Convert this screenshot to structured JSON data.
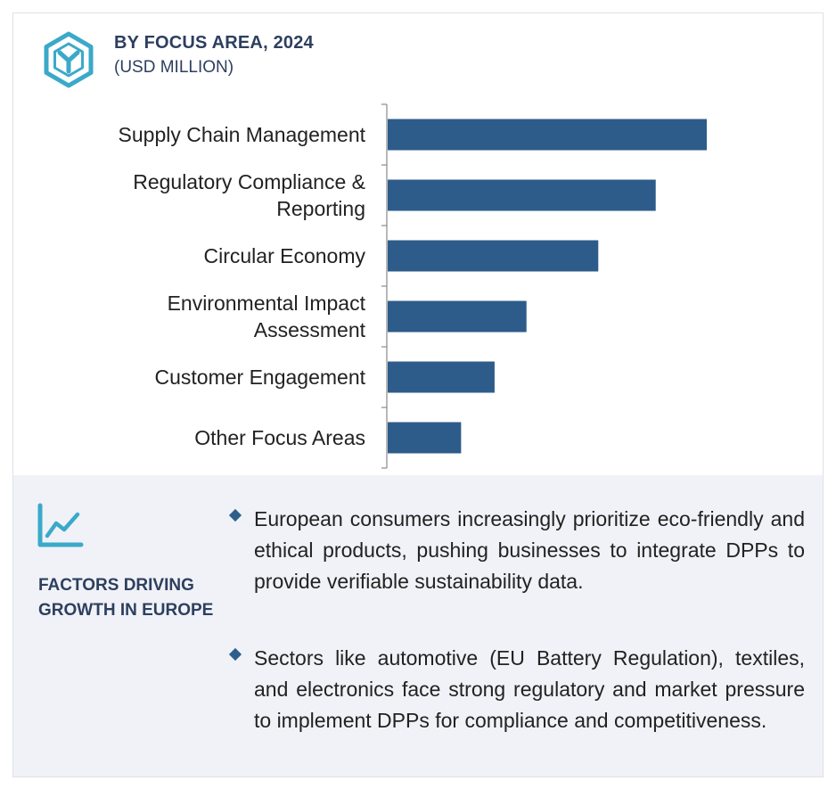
{
  "header": {
    "title": "BY FOCUS AREA, 2024",
    "subtitle": "(USD MILLION)"
  },
  "colors": {
    "bar": "#2d5c8a",
    "accent": "#3ba9c9",
    "heading": "#2d3f5f",
    "panel_bg": "#f0f2f7"
  },
  "icons": {
    "logo": "hexagon-y-logo-icon",
    "factors": "line-chart-icon",
    "bullet": "diamond-bullet-icon"
  },
  "chart_data": {
    "type": "bar",
    "orientation": "horizontal",
    "title": "BY FOCUS AREA, 2024",
    "subtitle": "(USD MILLION)",
    "categories": [
      "Supply Chain Management",
      "Regulatory Compliance & Reporting",
      "Circular Economy",
      "Environmental Impact Assessment",
      "Customer Engagement",
      "Other Focus Areas"
    ],
    "category_lines": [
      [
        "Supply Chain Management"
      ],
      [
        "Regulatory Compliance &",
        "Reporting"
      ],
      [
        "Circular Economy"
      ],
      [
        "Environmental Impact",
        "Assessment"
      ],
      [
        "Customer Engagement"
      ],
      [
        "Other Focus Areas"
      ]
    ],
    "values": [
      100,
      84,
      66,
      43.5,
      33.5,
      23
    ],
    "xlim": [
      0,
      100
    ],
    "value_axis_labels_shown": false,
    "grid": false,
    "legend": "none"
  },
  "factors": {
    "heading": "FACTORS DRIVING GROWTH IN EUROPE",
    "bullets": [
      "European consumers increasingly prioritize eco-friendly and ethical products, pushing businesses to integrate DPPs to provide verifiable sustainability data.",
      "Sectors like automotive (EU Battery Regulation), textiles, and electronics face strong regulatory and market pressure to implement DPPs for compliance and competitiveness."
    ]
  }
}
